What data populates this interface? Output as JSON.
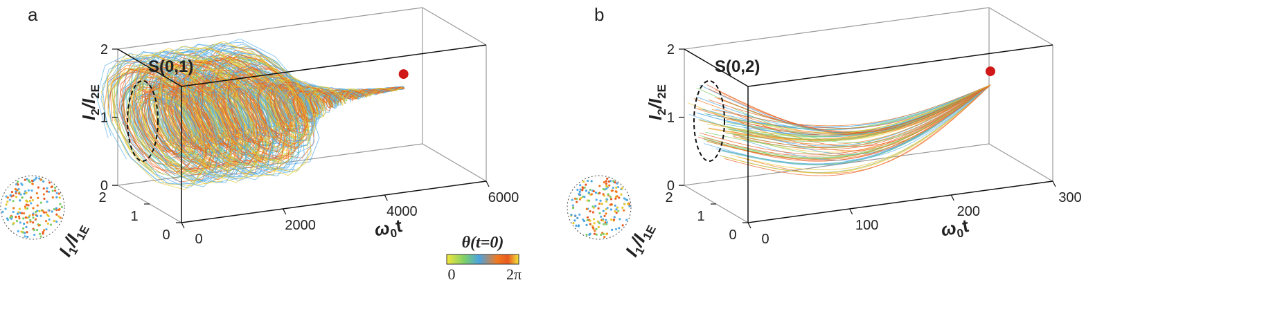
{
  "panels": [
    {
      "label": "a",
      "title": "S(0,1)",
      "x_axis": {
        "title": {
          "main": "ω",
          "sub": "0",
          "tail": "t"
        },
        "ticks": [
          0,
          2000,
          4000,
          6000
        ]
      },
      "y_axis": {
        "title": {
          "main": "I",
          "sub": "1",
          "mid": "/I",
          "sub2": "1E"
        },
        "ticks": [
          0,
          1,
          2
        ]
      },
      "z_axis": {
        "title": {
          "main": "I",
          "sub": "2",
          "mid": "/I",
          "sub2": "2E"
        },
        "ticks": [
          0,
          1,
          2
        ]
      }
    },
    {
      "label": "b",
      "title": "S(0,2)",
      "x_axis": {
        "title": {
          "main": "ω",
          "sub": "0",
          "tail": "t"
        },
        "ticks": [
          0,
          100,
          200,
          300
        ]
      },
      "y_axis": {
        "title": {
          "main": "I",
          "sub": "1",
          "mid": "/I",
          "sub2": "1E"
        },
        "ticks": [
          0,
          1,
          2
        ]
      },
      "z_axis": {
        "title": {
          "main": "I",
          "sub": "2",
          "mid": "/I",
          "sub2": "2E"
        },
        "ticks": [
          0,
          1,
          2
        ]
      }
    }
  ],
  "colorbar": {
    "title": "θ(t=0)",
    "min_label": 0,
    "max_label": "2π"
  }
}
